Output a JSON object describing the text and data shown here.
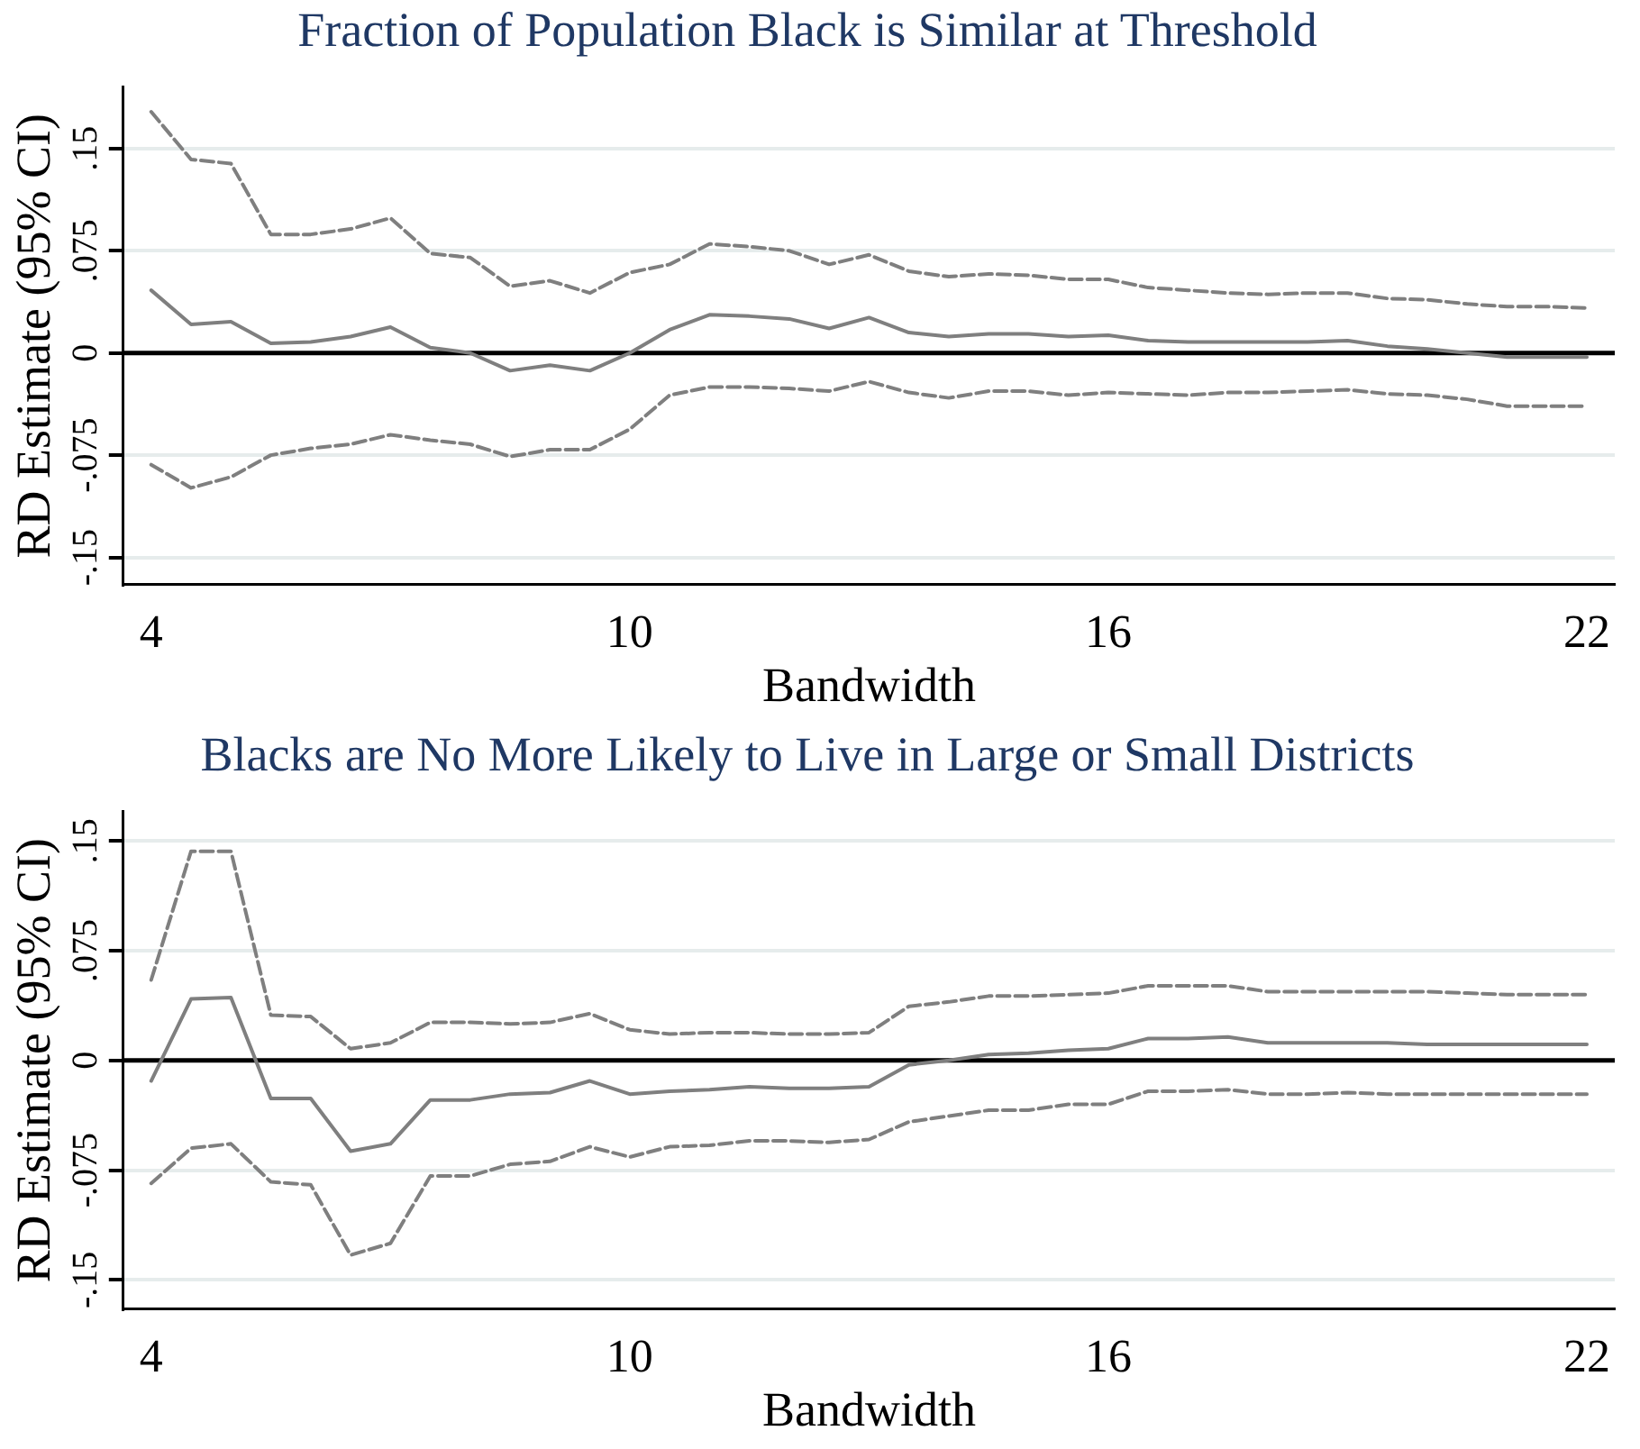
{
  "chart_data": [
    {
      "type": "line",
      "title": "Fraction of Population Black is Similar at Threshold",
      "xlabel": "Bandwidth",
      "ylabel": "RD Estimate (95% CI)",
      "x": [
        4,
        4.5,
        5,
        5.5,
        6,
        6.5,
        7,
        7.5,
        8,
        8.5,
        9,
        9.5,
        10,
        10.5,
        11,
        11.5,
        12,
        12.5,
        13,
        13.5,
        14,
        14.5,
        15,
        15.5,
        16,
        16.5,
        17,
        17.5,
        18,
        18.5,
        19,
        19.5,
        20,
        20.5,
        21,
        21.5,
        22
      ],
      "series": [
        {
          "color": "#7f7f7f",
          "line_style": "solid",
          "values": [
            0.046,
            0.021,
            0.023,
            0.007,
            0.008,
            0.012,
            0.019,
            0.004,
            0,
            -0.013,
            -0.009,
            -0.013,
            0,
            0.017,
            0.028,
            0.027,
            0.025,
            0.018,
            0.026,
            0.015,
            0.012,
            0.014,
            0.014,
            0.012,
            0.013,
            0.009,
            0.008,
            0.008,
            0.008,
            0.008,
            0.009,
            0.005,
            0.003,
            0,
            -0.003,
            -0.003,
            -0.003
          ]
        },
        {
          "color": "#7f7f7f",
          "line_style": "dashed",
          "values": [
            0.177,
            0.142,
            0.139,
            0.087,
            0.087,
            0.091,
            0.099,
            0.073,
            0.07,
            0.049,
            0.053,
            0.044,
            0.059,
            0.065,
            0.08,
            0.078,
            0.075,
            0.065,
            0.072,
            0.06,
            0.056,
            0.058,
            0.057,
            0.054,
            0.054,
            0.048,
            0.046,
            0.044,
            0.043,
            0.044,
            0.044,
            0.04,
            0.039,
            0.036,
            0.034,
            0.034,
            0.033
          ]
        },
        {
          "color": "#7f7f7f",
          "line_style": "dashed",
          "values": [
            -0.082,
            -0.099,
            -0.091,
            -0.075,
            -0.07,
            -0.067,
            -0.06,
            -0.064,
            -0.067,
            -0.076,
            -0.071,
            -0.071,
            -0.056,
            -0.031,
            -0.025,
            -0.025,
            -0.026,
            -0.028,
            -0.021,
            -0.029,
            -0.033,
            -0.028,
            -0.028,
            -0.031,
            -0.029,
            -0.03,
            -0.031,
            -0.029,
            -0.029,
            -0.028,
            -0.027,
            -0.03,
            -0.031,
            -0.034,
            -0.039,
            -0.039,
            -0.039
          ]
        }
      ],
      "xlim": [
        3.65,
        22.35
      ],
      "xticks": [
        4,
        10,
        16,
        22
      ],
      "ylim": [
        -0.17,
        0.195
      ],
      "yticks": [
        {
          "value": -0.15,
          "label": "-.15"
        },
        {
          "value": -0.075,
          "label": "-.075"
        },
        0,
        {
          "value": 0.075,
          "label": ".075"
        },
        {
          "value": 0.15,
          "label": ".15"
        }
      ],
      "grid": "y",
      "legend": false,
      "marker": "none",
      "ref_lines": [
        {
          "axis": "y",
          "value": 0,
          "color": "#000000"
        }
      ]
    },
    {
      "type": "line",
      "title": "Blacks are No More Likely to Live in Large or Small Districts",
      "xlabel": "Bandwidth",
      "ylabel": "RD Estimate (95% CI)",
      "x": [
        4,
        4.5,
        5,
        5.5,
        6,
        6.5,
        7,
        7.5,
        8,
        8.5,
        9,
        9.5,
        10,
        10.5,
        11,
        11.5,
        12,
        12.5,
        13,
        13.5,
        14,
        14.5,
        15,
        15.5,
        16,
        16.5,
        17,
        17.5,
        18,
        18.5,
        19,
        19.5,
        20,
        20.5,
        21,
        21.5,
        22
      ],
      "series": [
        {
          "color": "#7f7f7f",
          "line_style": "solid",
          "values": [
            -0.014,
            0.042,
            0.043,
            -0.026,
            -0.026,
            -0.062,
            -0.057,
            -0.027,
            -0.027,
            -0.023,
            -0.022,
            -0.014,
            -0.023,
            -0.021,
            -0.02,
            -0.018,
            -0.019,
            -0.019,
            -0.018,
            -0.003,
            0,
            0.004,
            0.005,
            0.007,
            0.008,
            0.015,
            0.015,
            0.016,
            0.012,
            0.012,
            0.012,
            0.012,
            0.011,
            0.011,
            0.011,
            0.011,
            0.011
          ]
        },
        {
          "color": "#7f7f7f",
          "line_style": "dashed",
          "values": [
            0.055,
            0.143,
            0.143,
            0.031,
            0.03,
            0.008,
            0.012,
            0.026,
            0.026,
            0.025,
            0.026,
            0.032,
            0.021,
            0.018,
            0.019,
            0.019,
            0.018,
            0.018,
            0.019,
            0.037,
            0.04,
            0.044,
            0.044,
            0.045,
            0.046,
            0.051,
            0.051,
            0.051,
            0.047,
            0.047,
            0.047,
            0.047,
            0.047,
            0.046,
            0.045,
            0.045,
            0.045
          ]
        },
        {
          "color": "#7f7f7f",
          "line_style": "dashed",
          "values": [
            -0.084,
            -0.06,
            -0.057,
            -0.083,
            -0.085,
            -0.133,
            -0.125,
            -0.079,
            -0.079,
            -0.071,
            -0.069,
            -0.059,
            -0.066,
            -0.059,
            -0.058,
            -0.055,
            -0.055,
            -0.056,
            -0.054,
            -0.042,
            -0.038,
            -0.034,
            -0.034,
            -0.03,
            -0.03,
            -0.021,
            -0.021,
            -0.02,
            -0.023,
            -0.023,
            -0.022,
            -0.023,
            -0.023,
            -0.023,
            -0.023,
            -0.023,
            -0.023
          ]
        }
      ],
      "xlim": [
        3.65,
        22.35
      ],
      "xticks": [
        4,
        10,
        16,
        22
      ],
      "ylim": [
        -0.17,
        0.17
      ],
      "yticks": [
        {
          "value": -0.15,
          "label": "-.15"
        },
        {
          "value": -0.075,
          "label": "-.075"
        },
        0,
        {
          "value": 0.075,
          "label": ".075"
        },
        {
          "value": 0.15,
          "label": ".15"
        }
      ],
      "grid": "y",
      "legend": false,
      "marker": "none",
      "ref_lines": [
        {
          "axis": "y",
          "value": 0,
          "color": "#000000"
        }
      ]
    }
  ]
}
